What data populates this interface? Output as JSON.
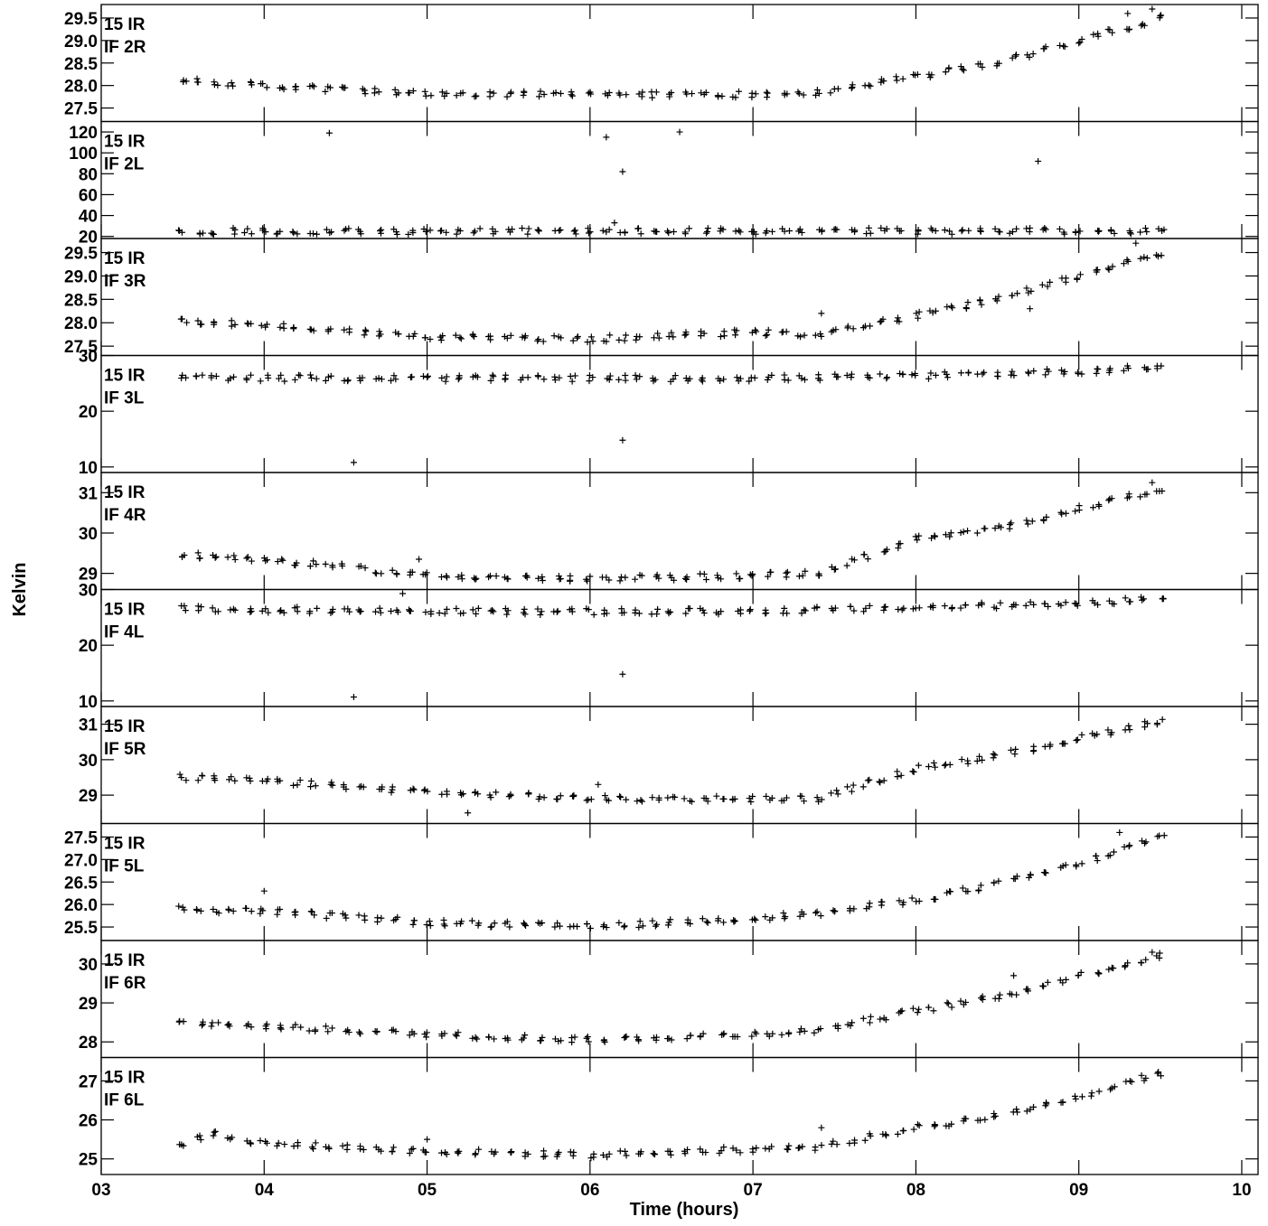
{
  "chart_data": {
    "type": "scatter",
    "xlabel": "Time (hours)",
    "ylabel": "Kelvin",
    "xlim": [
      3.0,
      10.1
    ],
    "x_ticks": [
      "03",
      "04",
      "05",
      "06",
      "07",
      "08",
      "09",
      "10"
    ],
    "marker": "+",
    "color": "#000000",
    "panels": [
      {
        "label_line1": "15 IR",
        "label_line2": "IF 2R",
        "ylim": [
          27.2,
          29.8
        ],
        "yticks": [
          "27.5",
          "28.0",
          "28.5",
          "29.0",
          "29.5"
        ],
        "trend": [
          [
            3.5,
            28.1
          ],
          [
            4.0,
            28.0
          ],
          [
            5.0,
            27.8
          ],
          [
            6.0,
            27.8
          ],
          [
            7.0,
            27.8
          ],
          [
            7.4,
            27.85
          ],
          [
            8.0,
            28.2
          ],
          [
            8.5,
            28.5
          ],
          [
            9.0,
            29.0
          ],
          [
            9.5,
            29.5
          ]
        ],
        "outliers": [
          [
            9.45,
            29.7
          ],
          [
            9.3,
            29.6
          ]
        ]
      },
      {
        "label_line1": "15 IR",
        "label_line2": "IF 2L",
        "ylim": [
          18,
          130
        ],
        "yticks": [
          "20",
          "40",
          "60",
          "80",
          "100",
          "120"
        ],
        "trend": [
          [
            3.5,
            25
          ],
          [
            6.0,
            25
          ],
          [
            9.5,
            25
          ]
        ],
        "outliers": [
          [
            4.4,
            119
          ],
          [
            6.1,
            115
          ],
          [
            6.2,
            82
          ],
          [
            6.55,
            120
          ],
          [
            8.75,
            92
          ],
          [
            6.15,
            33
          ]
        ]
      },
      {
        "label_line1": "15 IR",
        "label_line2": "IF 3R",
        "ylim": [
          27.3,
          29.8
        ],
        "yticks": [
          "27.5",
          "28.0",
          "28.5",
          "29.0",
          "29.5"
        ],
        "trend": [
          [
            3.5,
            28.05
          ],
          [
            4.0,
            27.95
          ],
          [
            5.0,
            27.7
          ],
          [
            6.0,
            27.65
          ],
          [
            7.0,
            27.8
          ],
          [
            7.4,
            27.75
          ],
          [
            8.0,
            28.15
          ],
          [
            8.5,
            28.5
          ],
          [
            9.0,
            29.0
          ],
          [
            9.5,
            29.5
          ]
        ],
        "outliers": [
          [
            7.42,
            28.2
          ],
          [
            8.7,
            28.3
          ],
          [
            9.35,
            29.7
          ]
        ]
      },
      {
        "label_line1": "15 IR",
        "label_line2": "IF 3L",
        "ylim": [
          9,
          30
        ],
        "yticks": [
          "10",
          "20",
          "30"
        ],
        "trend": [
          [
            3.5,
            26.0
          ],
          [
            5.0,
            25.9
          ],
          [
            6.0,
            25.9
          ],
          [
            7.0,
            25.9
          ],
          [
            8.0,
            26.3
          ],
          [
            9.0,
            27.2
          ],
          [
            9.5,
            27.9
          ]
        ],
        "outliers": [
          [
            4.55,
            10.8
          ],
          [
            6.2,
            14.8
          ]
        ]
      },
      {
        "label_line1": "15 IR",
        "label_line2": "IF 4R",
        "ylim": [
          28.6,
          31.5
        ],
        "yticks": [
          "29",
          "30",
          "31"
        ],
        "trend": [
          [
            3.5,
            29.45
          ],
          [
            4.0,
            29.35
          ],
          [
            5.0,
            28.95
          ],
          [
            6.0,
            28.85
          ],
          [
            7.0,
            28.95
          ],
          [
            7.4,
            29.0
          ],
          [
            8.0,
            29.85
          ],
          [
            8.5,
            30.1
          ],
          [
            9.0,
            30.6
          ],
          [
            9.5,
            31.1
          ]
        ],
        "outliers": [
          [
            4.95,
            29.35
          ],
          [
            4.85,
            28.5
          ],
          [
            9.45,
            31.25
          ]
        ]
      },
      {
        "label_line1": "15 IR",
        "label_line2": "IF 4L",
        "ylim": [
          9,
          30
        ],
        "yticks": [
          "10",
          "20",
          "30"
        ],
        "trend": [
          [
            3.5,
            26.5
          ],
          [
            5.0,
            26.1
          ],
          [
            6.0,
            26.0
          ],
          [
            7.0,
            26.1
          ],
          [
            8.0,
            26.7
          ],
          [
            9.0,
            27.6
          ],
          [
            9.5,
            28.3
          ]
        ],
        "outliers": [
          [
            4.55,
            10.7
          ],
          [
            6.2,
            14.8
          ]
        ]
      },
      {
        "label_line1": "15 IR",
        "label_line2": "IF 5R",
        "ylim": [
          28.2,
          31.5
        ],
        "yticks": [
          "29",
          "30",
          "31"
        ],
        "trend": [
          [
            3.5,
            29.5
          ],
          [
            4.0,
            29.4
          ],
          [
            5.0,
            29.1
          ],
          [
            6.0,
            28.9
          ],
          [
            7.0,
            28.9
          ],
          [
            7.4,
            28.9
          ],
          [
            8.0,
            29.75
          ],
          [
            8.5,
            30.1
          ],
          [
            9.0,
            30.6
          ],
          [
            9.5,
            31.1
          ]
        ],
        "outliers": [
          [
            6.05,
            29.3
          ],
          [
            5.25,
            28.5
          ]
        ]
      },
      {
        "label_line1": "15 IR",
        "label_line2": "IF 5L",
        "ylim": [
          25.2,
          27.8
        ],
        "yticks": [
          "25.5",
          "26.0",
          "26.5",
          "27.0",
          "27.5"
        ],
        "trend": [
          [
            3.5,
            25.9
          ],
          [
            4.0,
            25.85
          ],
          [
            5.0,
            25.6
          ],
          [
            6.0,
            25.5
          ],
          [
            7.0,
            25.7
          ],
          [
            7.4,
            25.8
          ],
          [
            8.0,
            26.1
          ],
          [
            8.5,
            26.45
          ],
          [
            9.0,
            26.9
          ],
          [
            9.5,
            27.5
          ]
        ],
        "outliers": [
          [
            4.0,
            26.3
          ],
          [
            9.25,
            27.6
          ]
        ]
      },
      {
        "label_line1": "15 IR",
        "label_line2": "IF 6R",
        "ylim": [
          27.6,
          30.6
        ],
        "yticks": [
          "28",
          "29",
          "30"
        ],
        "trend": [
          [
            3.5,
            28.5
          ],
          [
            4.0,
            28.4
          ],
          [
            5.0,
            28.2
          ],
          [
            6.0,
            28.05
          ],
          [
            7.0,
            28.2
          ],
          [
            7.4,
            28.3
          ],
          [
            8.0,
            28.8
          ],
          [
            8.5,
            29.15
          ],
          [
            9.0,
            29.7
          ],
          [
            9.5,
            30.2
          ]
        ],
        "outliers": [
          [
            8.6,
            29.7
          ],
          [
            9.45,
            30.3
          ]
        ]
      },
      {
        "label_line1": "15 IR",
        "label_line2": "IF 6L",
        "ylim": [
          24.6,
          27.6
        ],
        "yticks": [
          "25",
          "26",
          "27"
        ],
        "trend": [
          [
            3.5,
            25.4
          ],
          [
            3.7,
            25.65
          ],
          [
            4.0,
            25.4
          ],
          [
            5.0,
            25.2
          ],
          [
            6.0,
            25.1
          ],
          [
            7.0,
            25.25
          ],
          [
            7.4,
            25.3
          ],
          [
            8.0,
            25.8
          ],
          [
            8.5,
            26.1
          ],
          [
            9.0,
            26.6
          ],
          [
            9.5,
            27.2
          ]
        ],
        "outliers": [
          [
            7.42,
            25.8
          ],
          [
            5.0,
            25.5
          ]
        ]
      }
    ]
  }
}
